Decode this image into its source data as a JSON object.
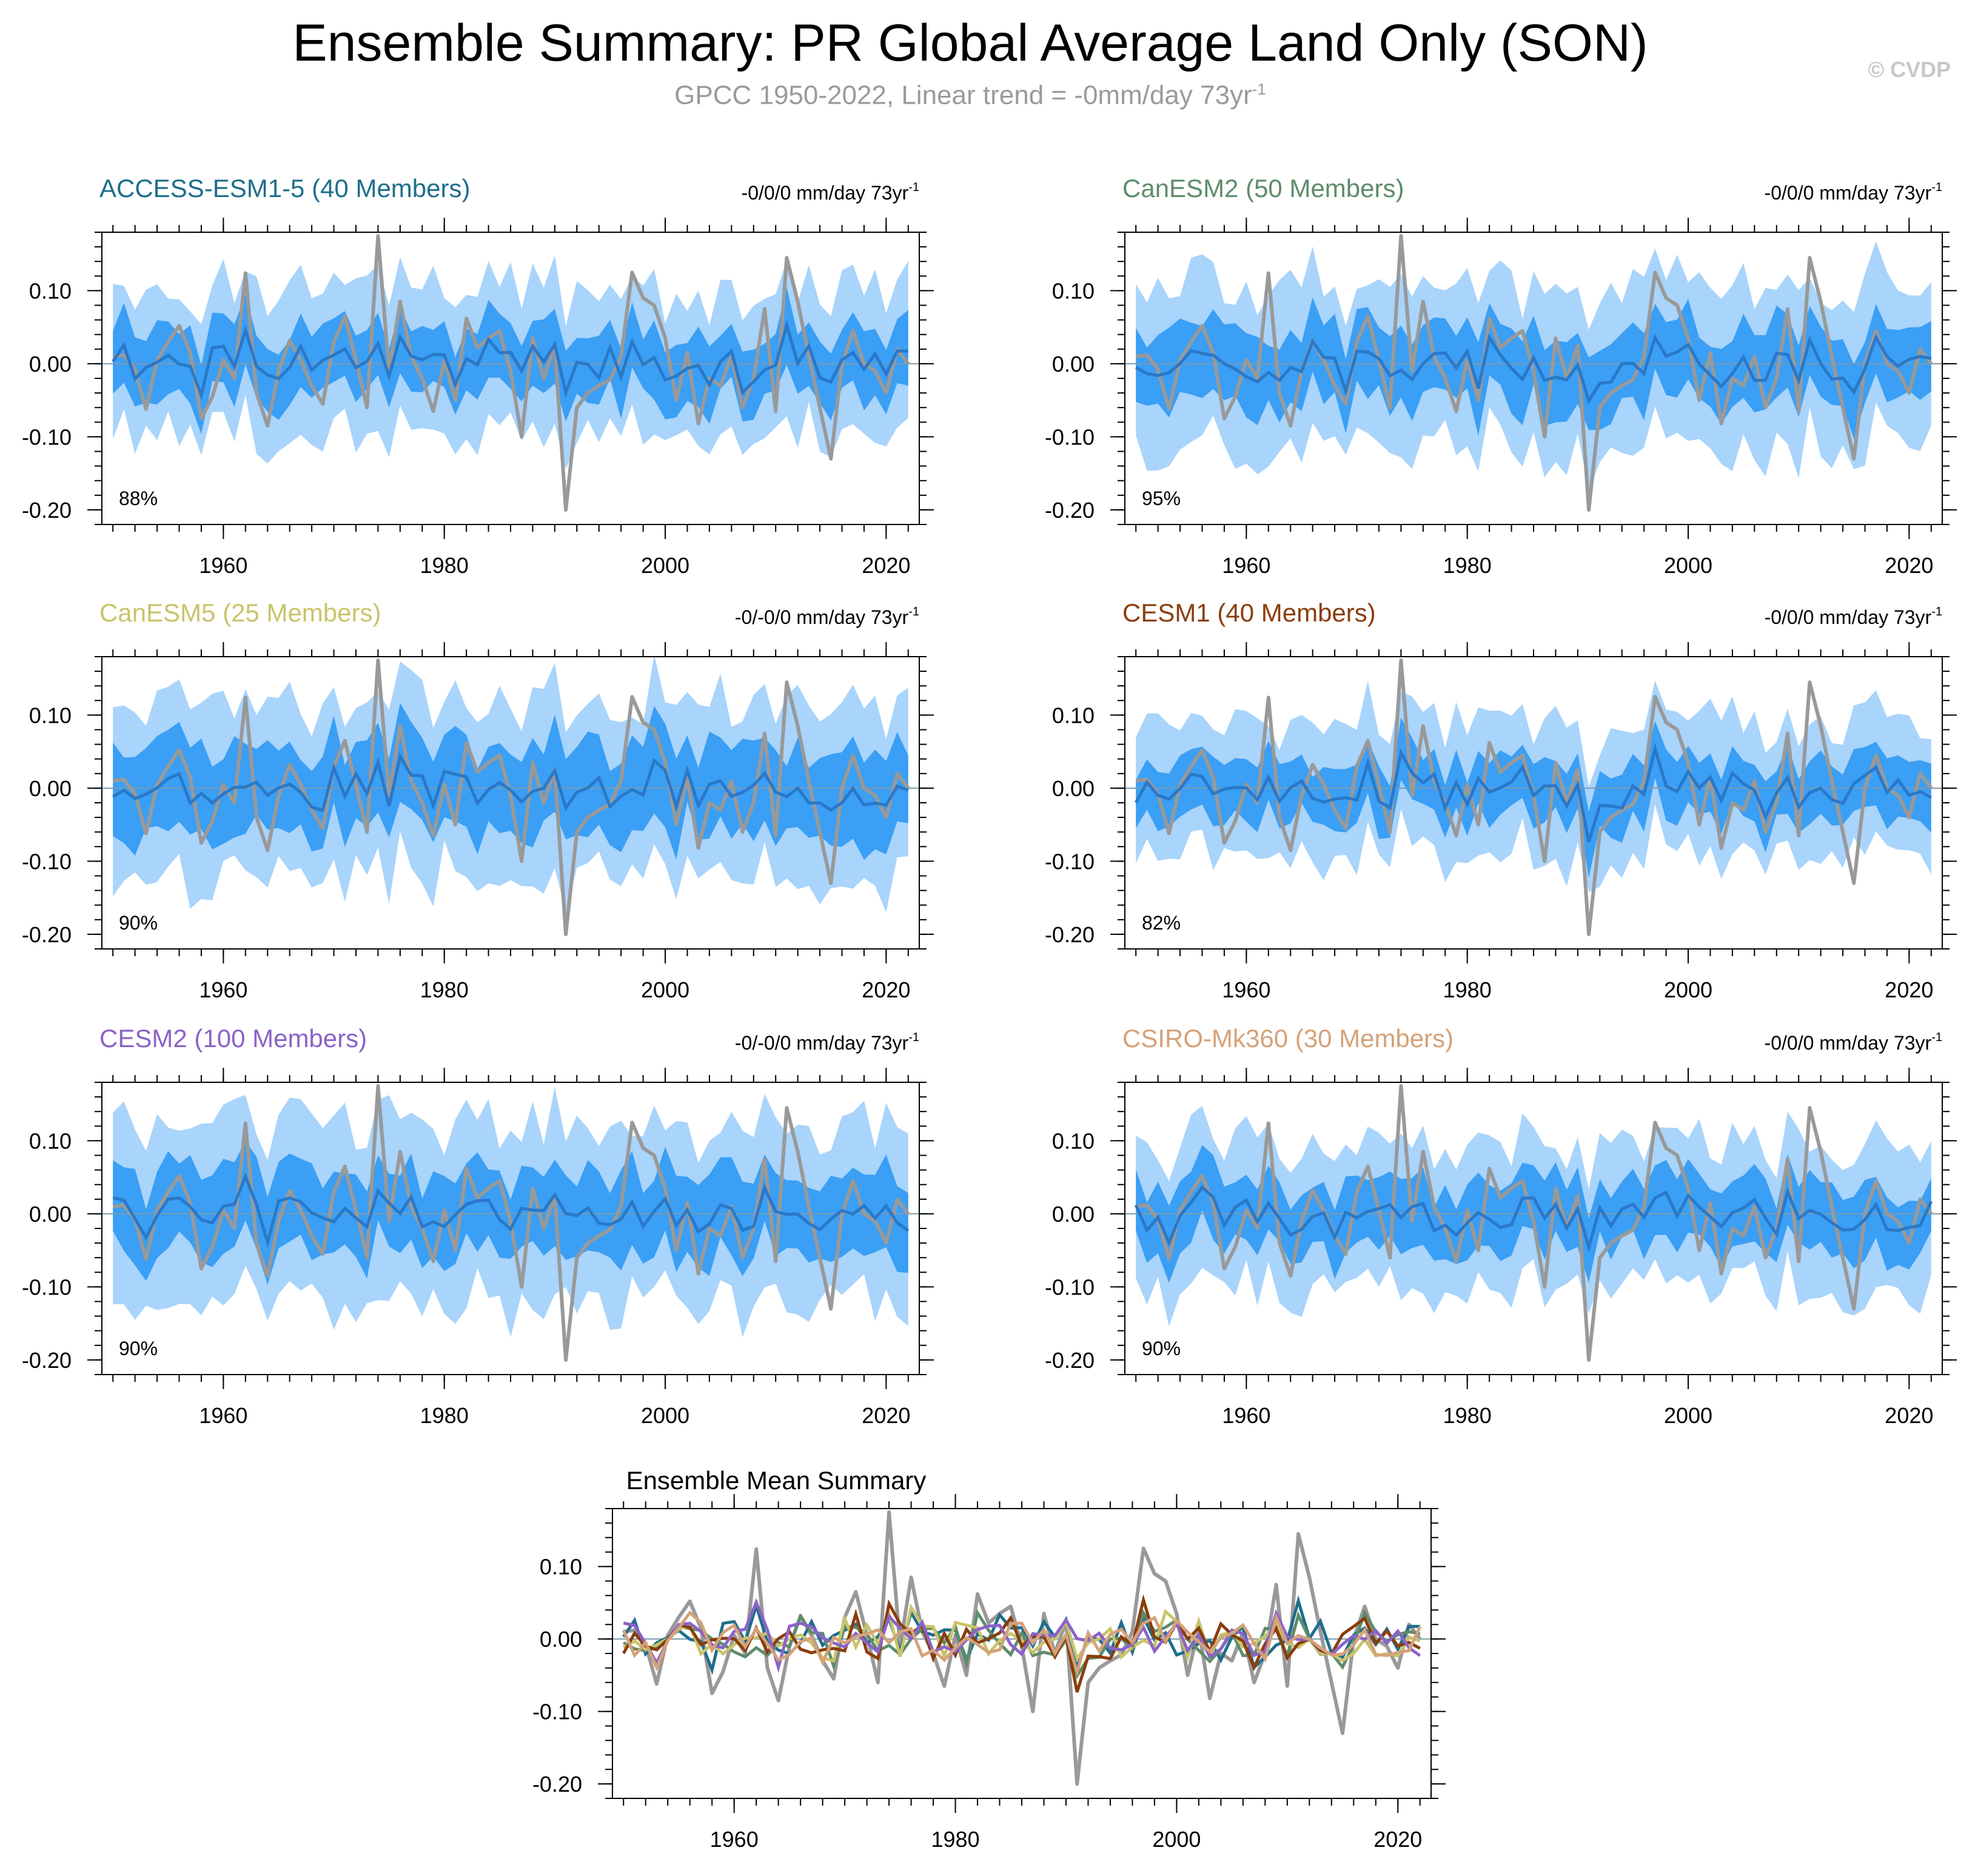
{
  "header": {
    "title": "Ensemble Summary: PR Global Average Land Only (SON)",
    "subtitle_main": "GPCC 1950-2022, Linear trend = -0mm/day 73yr",
    "subtitle_exp": "-1",
    "watermark": "© CVDP"
  },
  "chart_data": [
    {
      "type": "area",
      "title": "ACCESS-ESM1-5 (40 Members)",
      "title_color": "#1f6e8c",
      "trend_label": "-0/0/0 mm/day 73yr",
      "trend_exp": "-1",
      "percent_label": "88%",
      "xlim": [
        1949,
        2023
      ],
      "ylim": [
        -0.22,
        0.18
      ],
      "xticks": [
        "1960",
        "1980",
        "2000",
        "2020"
      ],
      "yticks": [
        "0.10",
        "0.00",
        "-0.10",
        "-0.20"
      ],
      "outer_band_halfwidth": 0.1,
      "inner_band_halfwidth": 0.045,
      "seed": 1
    },
    {
      "type": "area",
      "title": "CanESM2 (50 Members)",
      "title_color": "#5e8c6a",
      "trend_label": "-0/0/0 mm/day 73yr",
      "trend_exp": "-1",
      "percent_label": "95%",
      "xlim": [
        1949,
        2023
      ],
      "ylim": [
        -0.22,
        0.18
      ],
      "xticks": [
        "1960",
        "1980",
        "2000",
        "2020"
      ],
      "yticks": [
        "0.10",
        "0.00",
        "-0.10",
        "-0.20"
      ],
      "outer_band_halfwidth": 0.11,
      "inner_band_halfwidth": 0.05,
      "seed": 2
    },
    {
      "type": "area",
      "title": "CanESM5 (25 Members)",
      "title_color": "#c9c46a",
      "trend_label": "-0/-0/0 mm/day 73yr",
      "trend_exp": "-1",
      "percent_label": "90%",
      "xlim": [
        1949,
        2023
      ],
      "ylim": [
        -0.22,
        0.18
      ],
      "xticks": [
        "1960",
        "1980",
        "2000",
        "2020"
      ],
      "yticks": [
        "0.10",
        "0.00",
        "-0.10",
        "-0.20"
      ],
      "outer_band_halfwidth": 0.12,
      "inner_band_halfwidth": 0.06,
      "seed": 3
    },
    {
      "type": "area",
      "title": "CESM1 (40 Members)",
      "title_color": "#8a3d0b",
      "trend_label": "-0/0/0 mm/day 73yr",
      "trend_exp": "-1",
      "percent_label": "82%",
      "xlim": [
        1949,
        2023
      ],
      "ylim": [
        -0.22,
        0.18
      ],
      "xticks": [
        "1960",
        "1980",
        "2000",
        "2020"
      ],
      "yticks": [
        "0.10",
        "0.00",
        "-0.10",
        "-0.20"
      ],
      "outer_band_halfwidth": 0.09,
      "inner_band_halfwidth": 0.04,
      "seed": 4
    },
    {
      "type": "area",
      "title": "CESM2 (100 Members)",
      "title_color": "#8b63c9",
      "trend_label": "-0/-0/0 mm/day 73yr",
      "trend_exp": "-1",
      "percent_label": "90%",
      "xlim": [
        1949,
        2023
      ],
      "ylim": [
        -0.22,
        0.18
      ],
      "xticks": [
        "1960",
        "1980",
        "2000",
        "2020"
      ],
      "yticks": [
        "0.10",
        "0.00",
        "-0.10",
        "-0.20"
      ],
      "outer_band_halfwidth": 0.12,
      "inner_band_halfwidth": 0.055,
      "seed": 5
    },
    {
      "type": "area",
      "title": "CSIRO-Mk360 (30 Members)",
      "title_color": "#d4a27a",
      "trend_label": "-0/0/0 mm/day 73yr",
      "trend_exp": "-1",
      "percent_label": "90%",
      "xlim": [
        1949,
        2023
      ],
      "ylim": [
        -0.22,
        0.18
      ],
      "xticks": [
        "1960",
        "1980",
        "2000",
        "2020"
      ],
      "yticks": [
        "0.10",
        "0.00",
        "-0.10",
        "-0.20"
      ],
      "outer_band_halfwidth": 0.1,
      "inner_band_halfwidth": 0.045,
      "seed": 6
    },
    {
      "type": "line",
      "title": "Ensemble Mean Summary",
      "xlim": [
        1949,
        2023
      ],
      "ylim": [
        -0.22,
        0.18
      ],
      "xticks": [
        "1960",
        "1980",
        "2000",
        "2020"
      ],
      "yticks": [
        "0.10",
        "0.00",
        "-0.10",
        "-0.20"
      ],
      "line_colors": [
        "#1f6e8c",
        "#5e8c6a",
        "#c9c46a",
        "#8a3d0b",
        "#8b63c9",
        "#d4a27a"
      ]
    }
  ],
  "observations": {
    "x_start": 1950,
    "values": [
      0.01,
      0.012,
      -0.008,
      -0.062,
      0.005,
      0.03,
      0.052,
      0.015,
      -0.075,
      -0.045,
      0.005,
      -0.02,
      0.124,
      -0.04,
      -0.085,
      -0.01,
      0.032,
      0.005,
      -0.03,
      -0.055,
      0.03,
      0.065,
      0.005,
      -0.06,
      0.175,
      -0.01,
      0.085,
      0.01,
      -0.02,
      -0.065,
      0.005,
      -0.05,
      0.062,
      0.022,
      0.035,
      0.045,
      -0.01,
      -0.1,
      0.035,
      -0.02,
      0.025,
      -0.2,
      -0.06,
      -0.04,
      -0.03,
      -0.022,
      0.01,
      0.125,
      0.09,
      0.08,
      0.035,
      -0.05,
      0.015,
      -0.082,
      -0.02,
      -0.03,
      0.01,
      -0.06,
      -0.02,
      0.075,
      -0.065,
      0.145,
      0.085,
      0.01,
      -0.06,
      -0.13,
      0.0,
      0.045,
      0.0,
      -0.01,
      -0.04,
      0.02,
      0.0
    ],
    "color": "#999999"
  }
}
